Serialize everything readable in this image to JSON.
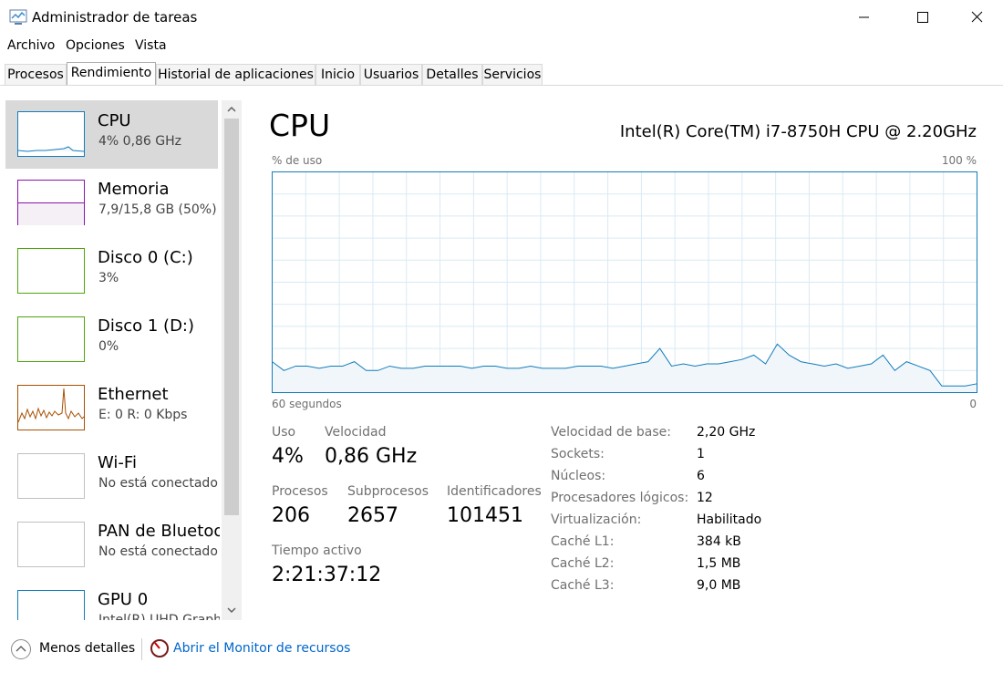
{
  "window": {
    "title": "Administrador de tareas"
  },
  "menu": [
    "Archivo",
    "Opciones",
    "Vista"
  ],
  "tabs": [
    "Procesos",
    "Rendimiento",
    "Historial de aplicaciones",
    "Inicio",
    "Usuarios",
    "Detalles",
    "Servicios"
  ],
  "sidebar": [
    {
      "name": "CPU",
      "detail": "4% 0,86 GHz"
    },
    {
      "name": "Memoria",
      "detail": "7,9/15,8 GB (50%)"
    },
    {
      "name": "Disco 0 (C:)",
      "detail": "3%"
    },
    {
      "name": "Disco 1 (D:)",
      "detail": "0%"
    },
    {
      "name": "Ethernet",
      "detail": "E: 0 R: 0 Kbps"
    },
    {
      "name": "Wi-Fi",
      "detail": "No está conectado"
    },
    {
      "name": "PAN de Bluetooth",
      "detail": "No está conectado"
    },
    {
      "name": "GPU 0",
      "detail": "Intel(R) UHD Graphics"
    }
  ],
  "main": {
    "title": "CPU",
    "processor": "Intel(R) Core(TM) i7-8750H CPU @ 2.20GHz",
    "graph": {
      "y_label": "% de uso",
      "y_max_label": "100 %",
      "x_left_label": "60 segundos",
      "x_right_label": "0",
      "ylim": [
        0,
        100
      ],
      "values": [
        14,
        10,
        12,
        12,
        11,
        12,
        12,
        14,
        10,
        10,
        12,
        11,
        11,
        12,
        12,
        12,
        12,
        11,
        12,
        12,
        11,
        11,
        12,
        11,
        11,
        11,
        12,
        12,
        12,
        11,
        12,
        13,
        14,
        20,
        12,
        13,
        12,
        13,
        13,
        14,
        15,
        17,
        13,
        22,
        17,
        14,
        13,
        12,
        13,
        11,
        12,
        13,
        17,
        10,
        14,
        12,
        10,
        3,
        3,
        3,
        4
      ]
    },
    "stats": [
      {
        "label": "Uso",
        "value": "4%"
      },
      {
        "label": "Velocidad",
        "value": "0,86 GHz"
      },
      {
        "label": "Procesos",
        "value": "206"
      },
      {
        "label": "Subprocesos",
        "value": "2657"
      },
      {
        "label": "Identificadores",
        "value": "101451"
      },
      {
        "label": "Tiempo activo",
        "value": "2:21:37:12"
      }
    ],
    "specs": [
      [
        "Velocidad de base:",
        "2,20 GHz"
      ],
      [
        "Sockets:",
        "1"
      ],
      [
        "Núcleos:",
        "6"
      ],
      [
        "Procesadores lógicos:",
        "12"
      ],
      [
        "Virtualización:",
        "Habilitado"
      ],
      [
        "Caché L1:",
        "384 kB"
      ],
      [
        "Caché L2:",
        "1,5 MB"
      ],
      [
        "Caché L3:",
        "9,0 MB"
      ]
    ]
  },
  "footer": {
    "less": "Menos detalles",
    "monitor": "Abrir el Monitor de recursos"
  }
}
